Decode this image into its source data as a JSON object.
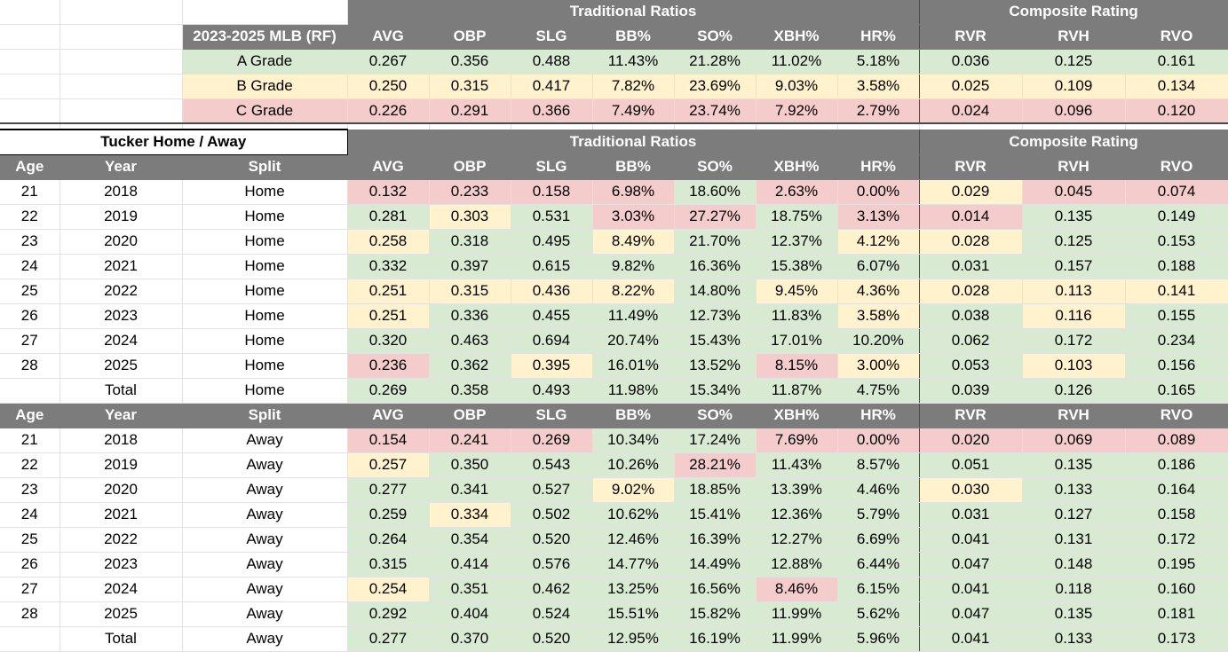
{
  "sections": {
    "traditional": "Traditional Ratios",
    "composite": "Composite Rating"
  },
  "benchmark": {
    "label": "2023-2025 MLB (RF)",
    "columns": [
      "AVG",
      "OBP",
      "SLG",
      "BB%",
      "SO%",
      "XBH%",
      "HR%",
      "RVR",
      "RVH",
      "RVO"
    ],
    "rows": [
      {
        "grade": "A Grade",
        "values": [
          "0.267",
          "0.356",
          "0.488",
          "11.43%",
          "21.28%",
          "11.02%",
          "5.18%",
          "0.036",
          "0.125",
          "0.161"
        ]
      },
      {
        "grade": "B Grade",
        "values": [
          "0.250",
          "0.315",
          "0.417",
          "7.82%",
          "23.69%",
          "9.03%",
          "3.58%",
          "0.025",
          "0.109",
          "0.134"
        ]
      },
      {
        "grade": "C Grade",
        "values": [
          "0.226",
          "0.291",
          "0.366",
          "7.49%",
          "23.74%",
          "7.92%",
          "2.79%",
          "0.024",
          "0.096",
          "0.120"
        ]
      }
    ]
  },
  "player_title": "Tucker Home / Away",
  "split_headers": {
    "age": "Age",
    "year": "Year",
    "split": "Split",
    "columns": [
      "AVG",
      "OBP",
      "SLG",
      "BB%",
      "SO%",
      "XBH%",
      "HR%",
      "RVR",
      "RVH",
      "RVO"
    ]
  },
  "home": [
    {
      "age": "21",
      "year": "2018",
      "split": "Home",
      "values": [
        "0.132",
        "0.233",
        "0.158",
        "6.98%",
        "18.60%",
        "2.63%",
        "0.00%",
        "0.029",
        "0.045",
        "0.074"
      ],
      "grades": [
        "r",
        "r",
        "r",
        "r",
        "g",
        "r",
        "r",
        "y",
        "r",
        "r"
      ]
    },
    {
      "age": "22",
      "year": "2019",
      "split": "Home",
      "values": [
        "0.281",
        "0.303",
        "0.531",
        "3.03%",
        "27.27%",
        "18.75%",
        "3.13%",
        "0.014",
        "0.135",
        "0.149"
      ],
      "grades": [
        "g",
        "y",
        "g",
        "r",
        "r",
        "g",
        "r",
        "r",
        "g",
        "g"
      ]
    },
    {
      "age": "23",
      "year": "2020",
      "split": "Home",
      "values": [
        "0.258",
        "0.318",
        "0.495",
        "8.49%",
        "21.70%",
        "12.37%",
        "4.12%",
        "0.028",
        "0.125",
        "0.153"
      ],
      "grades": [
        "y",
        "g",
        "g",
        "y",
        "g",
        "g",
        "y",
        "y",
        "g",
        "g"
      ]
    },
    {
      "age": "24",
      "year": "2021",
      "split": "Home",
      "values": [
        "0.332",
        "0.397",
        "0.615",
        "9.82%",
        "16.36%",
        "15.38%",
        "6.07%",
        "0.031",
        "0.157",
        "0.188"
      ],
      "grades": [
        "g",
        "g",
        "g",
        "g",
        "g",
        "g",
        "g",
        "g",
        "g",
        "g"
      ]
    },
    {
      "age": "25",
      "year": "2022",
      "split": "Home",
      "values": [
        "0.251",
        "0.315",
        "0.436",
        "8.22%",
        "14.80%",
        "9.45%",
        "4.36%",
        "0.028",
        "0.113",
        "0.141"
      ],
      "grades": [
        "y",
        "y",
        "y",
        "y",
        "g",
        "y",
        "y",
        "y",
        "y",
        "y"
      ]
    },
    {
      "age": "26",
      "year": "2023",
      "split": "Home",
      "values": [
        "0.251",
        "0.336",
        "0.455",
        "11.49%",
        "12.73%",
        "11.83%",
        "3.58%",
        "0.038",
        "0.116",
        "0.155"
      ],
      "grades": [
        "y",
        "g",
        "g",
        "g",
        "g",
        "g",
        "y",
        "g",
        "y",
        "g"
      ]
    },
    {
      "age": "27",
      "year": "2024",
      "split": "Home",
      "values": [
        "0.320",
        "0.463",
        "0.694",
        "20.74%",
        "15.43%",
        "17.01%",
        "10.20%",
        "0.062",
        "0.172",
        "0.234"
      ],
      "grades": [
        "g",
        "g",
        "g",
        "g",
        "g",
        "g",
        "g",
        "g",
        "g",
        "g"
      ]
    },
    {
      "age": "28",
      "year": "2025",
      "split": "Home",
      "values": [
        "0.236",
        "0.362",
        "0.395",
        "16.01%",
        "13.52%",
        "8.15%",
        "3.00%",
        "0.053",
        "0.103",
        "0.156"
      ],
      "grades": [
        "r",
        "g",
        "y",
        "g",
        "g",
        "r",
        "y",
        "g",
        "y",
        "g"
      ]
    },
    {
      "age": "",
      "year": "Total",
      "split": "Home",
      "values": [
        "0.269",
        "0.358",
        "0.493",
        "11.98%",
        "15.34%",
        "11.87%",
        "4.75%",
        "0.039",
        "0.126",
        "0.165"
      ],
      "grades": [
        "g",
        "g",
        "g",
        "g",
        "g",
        "g",
        "g",
        "g",
        "g",
        "g"
      ]
    }
  ],
  "away": [
    {
      "age": "21",
      "year": "2018",
      "split": "Away",
      "values": [
        "0.154",
        "0.241",
        "0.269",
        "10.34%",
        "17.24%",
        "7.69%",
        "0.00%",
        "0.020",
        "0.069",
        "0.089"
      ],
      "grades": [
        "r",
        "r",
        "r",
        "g",
        "g",
        "r",
        "r",
        "r",
        "r",
        "r"
      ]
    },
    {
      "age": "22",
      "year": "2019",
      "split": "Away",
      "values": [
        "0.257",
        "0.350",
        "0.543",
        "10.26%",
        "28.21%",
        "11.43%",
        "8.57%",
        "0.051",
        "0.135",
        "0.186"
      ],
      "grades": [
        "y",
        "g",
        "g",
        "g",
        "r",
        "g",
        "g",
        "g",
        "g",
        "g"
      ]
    },
    {
      "age": "23",
      "year": "2020",
      "split": "Away",
      "values": [
        "0.277",
        "0.341",
        "0.527",
        "9.02%",
        "18.85%",
        "13.39%",
        "4.46%",
        "0.030",
        "0.133",
        "0.164"
      ],
      "grades": [
        "g",
        "g",
        "g",
        "y",
        "g",
        "g",
        "g",
        "y",
        "g",
        "g"
      ]
    },
    {
      "age": "24",
      "year": "2021",
      "split": "Away",
      "values": [
        "0.259",
        "0.334",
        "0.502",
        "10.62%",
        "15.41%",
        "12.36%",
        "5.79%",
        "0.031",
        "0.127",
        "0.158"
      ],
      "grades": [
        "g",
        "y",
        "g",
        "g",
        "g",
        "g",
        "g",
        "g",
        "g",
        "g"
      ]
    },
    {
      "age": "25",
      "year": "2022",
      "split": "Away",
      "values": [
        "0.264",
        "0.354",
        "0.520",
        "12.46%",
        "16.39%",
        "12.27%",
        "6.69%",
        "0.041",
        "0.131",
        "0.172"
      ],
      "grades": [
        "g",
        "g",
        "g",
        "g",
        "g",
        "g",
        "g",
        "g",
        "g",
        "g"
      ]
    },
    {
      "age": "26",
      "year": "2023",
      "split": "Away",
      "values": [
        "0.315",
        "0.414",
        "0.576",
        "14.77%",
        "14.49%",
        "12.88%",
        "6.44%",
        "0.047",
        "0.148",
        "0.195"
      ],
      "grades": [
        "g",
        "g",
        "g",
        "g",
        "g",
        "g",
        "g",
        "g",
        "g",
        "g"
      ]
    },
    {
      "age": "27",
      "year": "2024",
      "split": "Away",
      "values": [
        "0.254",
        "0.351",
        "0.462",
        "13.25%",
        "16.56%",
        "8.46%",
        "6.15%",
        "0.041",
        "0.118",
        "0.160"
      ],
      "grades": [
        "y",
        "g",
        "g",
        "g",
        "g",
        "r",
        "g",
        "g",
        "g",
        "g"
      ]
    },
    {
      "age": "28",
      "year": "2025",
      "split": "Away",
      "values": [
        "0.292",
        "0.404",
        "0.524",
        "15.51%",
        "15.82%",
        "11.99%",
        "5.62%",
        "0.047",
        "0.135",
        "0.181"
      ],
      "grades": [
        "g",
        "g",
        "g",
        "g",
        "g",
        "g",
        "g",
        "g",
        "g",
        "g"
      ]
    },
    {
      "age": "",
      "year": "Total",
      "split": "Away",
      "values": [
        "0.277",
        "0.370",
        "0.520",
        "12.95%",
        "16.19%",
        "11.99%",
        "5.96%",
        "0.041",
        "0.133",
        "0.173"
      ],
      "grades": [
        "g",
        "g",
        "g",
        "g",
        "g",
        "g",
        "g",
        "g",
        "g",
        "g"
      ]
    }
  ]
}
